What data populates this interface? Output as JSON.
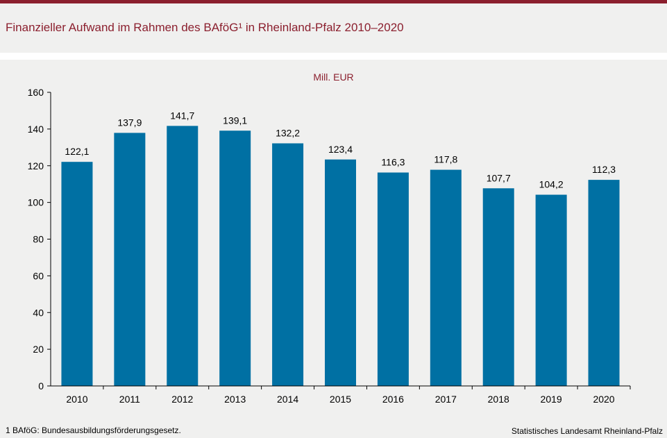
{
  "title": "Finanzieller Aufwand im Rahmen des BAföG¹ in Rheinland-Pfalz 2010–2020",
  "footnote": "1 BAföG: Bundesausbildungsförderungsgesetz.",
  "source": "Statistisches Landesamt Rheinland-Pfalz",
  "colors": {
    "accent": "#8b1f2e",
    "bar": "#0070a3"
  },
  "chart_data": {
    "type": "bar",
    "title": "",
    "unit_label": "Mill. EUR",
    "xlabel": "",
    "ylabel": "",
    "categories": [
      "2010",
      "2011",
      "2012",
      "2013",
      "2014",
      "2015",
      "2016",
      "2017",
      "2018",
      "2019",
      "2020"
    ],
    "values": [
      122.1,
      137.9,
      141.7,
      139.1,
      132.2,
      123.4,
      116.3,
      117.8,
      107.7,
      104.2,
      112.3
    ],
    "value_labels": [
      "122,1",
      "137,9",
      "141,7",
      "139,1",
      "132,2",
      "123,4",
      "116,3",
      "117,8",
      "107,7",
      "104,2",
      "112,3"
    ],
    "ylim": [
      0,
      160
    ],
    "yticks": [
      0,
      20,
      40,
      60,
      80,
      100,
      120,
      140,
      160
    ],
    "grid": false,
    "legend": "none"
  }
}
